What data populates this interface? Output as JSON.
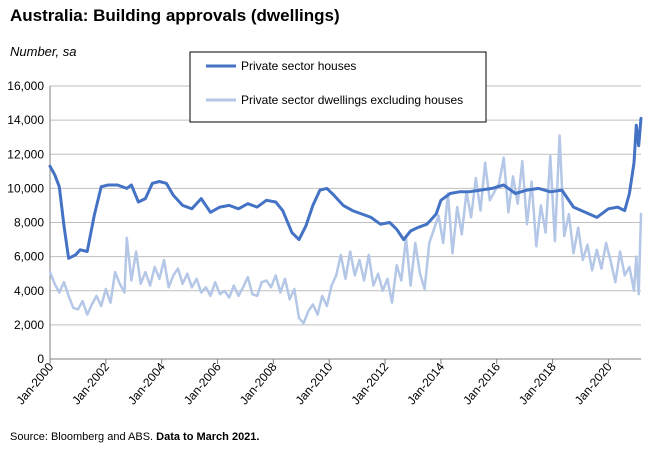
{
  "title": "Australia: Building approvals (dwellings)",
  "unit_label": "Number, sa",
  "source": "Source: Bloomberg and ABS.",
  "data_note": "Data to March 2021.",
  "colors": {
    "houses": "#4472c4",
    "others": "#b4c7e7",
    "grid": "#bfbfbf",
    "axis": "#808080"
  },
  "chart_data": {
    "type": "line",
    "title": "Australia: Building approvals (dwellings)",
    "ylabel": "Number, sa",
    "xlabel": "",
    "ylim": [
      0,
      16000
    ],
    "yticks": [
      0,
      2000,
      4000,
      6000,
      8000,
      10000,
      12000,
      14000,
      16000
    ],
    "ytick_labels": [
      "0",
      "2,000",
      "4,000",
      "6,000",
      "8,000",
      "10,000",
      "12,000",
      "14,000",
      "16,000"
    ],
    "xlim": [
      "2000-01",
      "2021-03"
    ],
    "xticks": [
      "2000-01",
      "2002-01",
      "2004-01",
      "2006-01",
      "2008-01",
      "2010-01",
      "2012-01",
      "2014-01",
      "2016-01",
      "2018-01",
      "2020-01"
    ],
    "xtick_labels": [
      "Jan-2000",
      "Jan-2002",
      "Jan-2004",
      "Jan-2006",
      "Jan-2008",
      "Jan-2010",
      "Jan-2012",
      "Jan-2014",
      "Jan-2016",
      "Jan-2018",
      "Jan-2020"
    ],
    "grid": "horizontal",
    "legend_position": "top-center",
    "series": [
      {
        "name": "Private sector houses",
        "x": [
          "2000-01",
          "2000-03",
          "2000-05",
          "2000-07",
          "2000-09",
          "2000-12",
          "2001-02",
          "2001-05",
          "2001-08",
          "2001-11",
          "2002-02",
          "2002-06",
          "2002-10",
          "2002-12",
          "2003-03",
          "2003-06",
          "2003-09",
          "2003-12",
          "2004-03",
          "2004-06",
          "2004-10",
          "2005-02",
          "2005-06",
          "2005-10",
          "2006-02",
          "2006-06",
          "2006-10",
          "2007-02",
          "2007-06",
          "2007-10",
          "2008-02",
          "2008-05",
          "2008-09",
          "2008-12",
          "2009-03",
          "2009-06",
          "2009-09",
          "2009-12",
          "2010-03",
          "2010-07",
          "2010-11",
          "2011-03",
          "2011-07",
          "2011-11",
          "2012-03",
          "2012-06",
          "2012-09",
          "2012-12",
          "2013-03",
          "2013-07",
          "2013-11",
          "2014-01",
          "2014-05",
          "2014-09",
          "2015-01",
          "2015-06",
          "2015-11",
          "2016-04",
          "2016-09",
          "2017-02",
          "2017-07",
          "2017-12",
          "2018-05",
          "2018-10",
          "2019-03",
          "2019-08",
          "2020-01",
          "2020-05",
          "2020-08",
          "2020-10",
          "2020-12",
          "2021-01",
          "2021-02",
          "2021-03"
        ],
        "values": [
          11300,
          10800,
          10100,
          7800,
          5900,
          6100,
          6400,
          6300,
          8400,
          10100,
          10200,
          10200,
          10000,
          10200,
          9200,
          9400,
          10300,
          10400,
          10300,
          9600,
          9000,
          8800,
          9400,
          8600,
          8900,
          9000,
          8800,
          9100,
          8900,
          9300,
          9200,
          8700,
          7400,
          7000,
          7800,
          9000,
          9900,
          10000,
          9600,
          9000,
          8700,
          8500,
          8300,
          7900,
          8000,
          7600,
          7000,
          7500,
          7700,
          7900,
          8500,
          9300,
          9700,
          9800,
          9800,
          9900,
          10000,
          10200,
          9700,
          9900,
          10000,
          9800,
          9900,
          8900,
          8600,
          8300,
          8800,
          8900,
          8700,
          9700,
          11500,
          13700,
          12500,
          14100
        ]
      },
      {
        "name": "Private sector dwellings excluding houses",
        "x": [
          "2000-01",
          "2000-03",
          "2000-05",
          "2000-07",
          "2000-09",
          "2000-11",
          "2001-01",
          "2001-03",
          "2001-05",
          "2001-07",
          "2001-09",
          "2001-11",
          "2002-01",
          "2002-03",
          "2002-05",
          "2002-07",
          "2002-09",
          "2002-10",
          "2002-12",
          "2003-02",
          "2003-04",
          "2003-06",
          "2003-08",
          "2003-10",
          "2003-12",
          "2004-02",
          "2004-04",
          "2004-06",
          "2004-08",
          "2004-10",
          "2004-12",
          "2005-02",
          "2005-04",
          "2005-06",
          "2005-08",
          "2005-10",
          "2005-12",
          "2006-02",
          "2006-04",
          "2006-06",
          "2006-08",
          "2006-10",
          "2006-12",
          "2007-02",
          "2007-04",
          "2007-06",
          "2007-08",
          "2007-10",
          "2007-12",
          "2008-02",
          "2008-04",
          "2008-06",
          "2008-08",
          "2008-10",
          "2008-12",
          "2009-02",
          "2009-04",
          "2009-06",
          "2009-08",
          "2009-10",
          "2009-12",
          "2010-02",
          "2010-04",
          "2010-06",
          "2010-08",
          "2010-10",
          "2010-12",
          "2011-02",
          "2011-04",
          "2011-06",
          "2011-08",
          "2011-10",
          "2011-12",
          "2012-02",
          "2012-04",
          "2012-06",
          "2012-08",
          "2012-10",
          "2012-12",
          "2013-02",
          "2013-04",
          "2013-06",
          "2013-08",
          "2013-10",
          "2013-12",
          "2014-02",
          "2014-04",
          "2014-06",
          "2014-08",
          "2014-10",
          "2014-12",
          "2015-02",
          "2015-04",
          "2015-06",
          "2015-08",
          "2015-10",
          "2015-12",
          "2016-02",
          "2016-04",
          "2016-06",
          "2016-08",
          "2016-10",
          "2016-12",
          "2017-02",
          "2017-04",
          "2017-06",
          "2017-08",
          "2017-10",
          "2017-12",
          "2018-02",
          "2018-04",
          "2018-06",
          "2018-08",
          "2018-10",
          "2018-12",
          "2019-02",
          "2019-04",
          "2019-06",
          "2019-08",
          "2019-10",
          "2019-12",
          "2020-02",
          "2020-04",
          "2020-06",
          "2020-08",
          "2020-10",
          "2020-12",
          "2021-01",
          "2021-02",
          "2021-03"
        ],
        "values": [
          5100,
          4400,
          3900,
          4500,
          3700,
          3000,
          2900,
          3400,
          2600,
          3200,
          3700,
          3100,
          4100,
          3300,
          5100,
          4400,
          3900,
          7100,
          4600,
          6300,
          4400,
          5100,
          4300,
          5400,
          4700,
          5800,
          4200,
          4900,
          5300,
          4400,
          5000,
          4200,
          4700,
          3900,
          4200,
          3700,
          4500,
          3800,
          4000,
          3600,
          4300,
          3700,
          4200,
          4800,
          3800,
          3700,
          4500,
          4600,
          4200,
          4900,
          3900,
          4700,
          3500,
          4100,
          2400,
          2100,
          2800,
          3200,
          2600,
          3700,
          3100,
          4300,
          4900,
          6100,
          4700,
          6300,
          4900,
          5800,
          4600,
          6100,
          4300,
          5000,
          4000,
          4700,
          3300,
          5500,
          4600,
          7100,
          4300,
          6800,
          5000,
          4100,
          6800,
          7600,
          8400,
          6800,
          9700,
          6200,
          8900,
          7300,
          9800,
          8300,
          10600,
          8700,
          11500,
          9300,
          9800,
          10300,
          11800,
          8600,
          10700,
          9100,
          11600,
          7900,
          10400,
          6600,
          9000,
          7400,
          11900,
          6900,
          13100,
          7200,
          8500,
          6200,
          7700,
          5800,
          6700,
          5200,
          6400,
          5300,
          6800,
          5700,
          4500,
          6300,
          4900,
          5400,
          4000,
          6000,
          3800,
          8500
        ]
      }
    ]
  }
}
